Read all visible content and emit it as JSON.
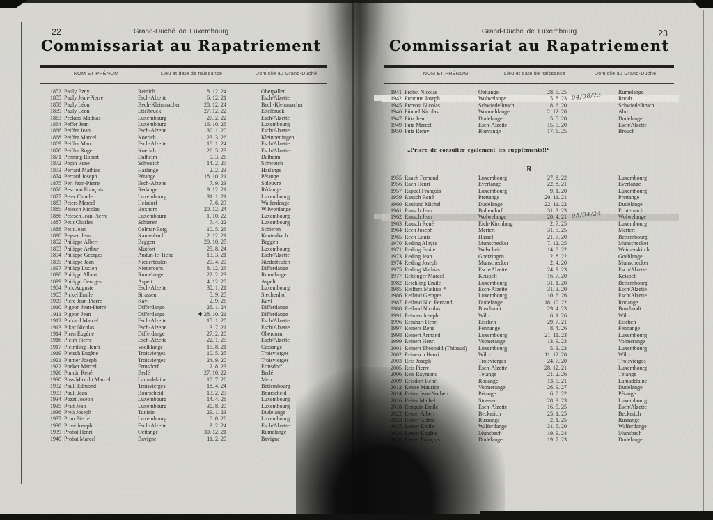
{
  "left_page": {
    "page_number": "22",
    "running_head": "Grand-Duché de Luxembourg",
    "title": "Commissariat au Rapatriement",
    "columns": [
      "NOM ET PRÉNOM",
      "Lieu et date de naissance",
      "Domicile au Grand-Duché"
    ],
    "rows": [
      [
        "1852",
        "Pauly Ezny",
        "Remich",
        "8. 12. 24",
        "Oberpallen"
      ],
      [
        "1855",
        "Pauly Jean-Pierre",
        "Esch-Alzette",
        "6. 12. 21",
        "Esch/Alzette"
      ],
      [
        "1858",
        "Pauly Léon",
        "Bech-Kleinmacher",
        "28. 12. 24",
        "Bech-Kleinmacher"
      ],
      [
        "1859",
        "Pauly Léon",
        "Ettelbruck",
        "27. 12. 22",
        "Ettelbruck"
      ],
      [
        "1863",
        "Peckers Mathias",
        "Luxembourg",
        "27. 2. 22",
        "Esch/Alzette"
      ],
      [
        "1864",
        "Peffer Jean",
        "Luxembourg",
        "16. 10. 26",
        "Luxembourg"
      ],
      [
        "1866",
        "Peiffer Jean",
        "Esch-Alzette",
        "30. 1. 20",
        "Esch/Alzette"
      ],
      [
        "1868",
        "Peiffer Marcel",
        "Koerich",
        "23. 3. 26",
        "Kleinbettingen"
      ],
      [
        "1869",
        "Peiffer Marc",
        "Esch-Alzette",
        "18. 1. 24",
        "Esch/Alzette"
      ],
      [
        "1870",
        "Peiffer Roger",
        "Koerich",
        "26. 5. 23",
        "Esch/Alzette"
      ],
      [
        "1871",
        "Penning Robert",
        "Dalheim",
        "9. 3. 26",
        "Dalheim"
      ],
      [
        "1872",
        "Pepin René",
        "Schweich",
        "14. 2. 25",
        "Schweich"
      ],
      [
        "1873",
        "Perrard Mathias",
        "Harlange",
        "2. 2. 23",
        "Harlange"
      ],
      [
        "1874",
        "Perrard Joseph",
        "Pétange",
        "18. 10. 21",
        "Pétange"
      ],
      [
        "1875",
        "Perl Jean-Pierre",
        "Esch-Alzette",
        "7. 9. 23",
        "Soleuvre"
      ],
      [
        "1876",
        "Peschon François",
        "Rédange",
        "9. 12. 21",
        "Rédange"
      ],
      [
        "1877",
        "Peter Claude",
        "Luxembourg",
        "31. 1. 21",
        "Luxembourg"
      ],
      [
        "1883",
        "Peters Marcel",
        "Heisdorf",
        "7. 6. 23",
        "Walferdange"
      ],
      [
        "1885",
        "Petesch Nicolas",
        "Boxhorn",
        "20. 12. 24",
        "Wilwerdange"
      ],
      [
        "1886",
        "Petesch Jean-Pierre",
        "Luxembourg",
        "1. 10. 22",
        "Luxembourg"
      ],
      [
        "1887",
        "Petit Charles",
        "Schieren",
        "7. 4. 22",
        "Luxembourg"
      ],
      [
        "1888",
        "Petit Jean",
        "Colmar-Berg",
        "10. 5. 26",
        "Schieren"
      ],
      [
        "1890",
        "Peysen Jean",
        "Kautenbach",
        "2. 12. 21",
        "Kautenbach"
      ],
      [
        "1892",
        "Philippe Albert",
        "Beggen",
        "20. 10. 25",
        "Beggen"
      ],
      [
        "1893",
        "Philippe Arthur",
        "Mutfort",
        "25. 8. 24",
        "Luxembourg"
      ],
      [
        "1894",
        "Philippe Georges",
        "Audun-le-Tiche",
        "13. 3. 21",
        "Esch/Alzette"
      ],
      [
        "1895",
        "Philippe Jean",
        "Niederfeulen",
        "29. 4. 20",
        "Niederfeulen"
      ],
      [
        "1897",
        "Philipp Lucien",
        "Niedercorn",
        "8. 12. 26",
        "Differdange"
      ],
      [
        "1898",
        "Philippi Albert",
        "Rumelange",
        "22. 2. 23",
        "Rumelange"
      ],
      [
        "1899",
        "Philippi Georges",
        "Aspelt",
        "4. 12. 20",
        "Aspelt"
      ],
      [
        "1904",
        "Pick Auguste",
        "Esch-Alzette",
        "30. 1. 21",
        "Luxembourg"
      ],
      [
        "1905",
        "Pickel Emile",
        "Strassen",
        "5. 9. 25",
        "Siechenhof"
      ],
      [
        "1909",
        "Pière Jean-Pierre",
        "Kayl",
        "2. 9. 26",
        "Kayl"
      ],
      [
        "1910",
        "Pigeon Jean-Pierre",
        "Differdange",
        "26. 1. 24",
        "Differdange"
      ],
      [
        "1911",
        "Pigeon Jean",
        "Differdange",
        "✱  28. 10. 21",
        "Differdange"
      ],
      [
        "1912",
        "Pickard Marcel",
        "Esch-Alzette",
        "15. 1. 20",
        "Esch/Alzette"
      ],
      [
        "1913",
        "Pikar Nicolas",
        "Esch-Alzette",
        "3. 7. 21",
        "Esch/Alzette"
      ],
      [
        "1914",
        "Piren Eugène",
        "Differdange",
        "27. 2. 20",
        "Obercorn"
      ],
      [
        "1916",
        "Pleim Pierre",
        "Esch-Alzette",
        "22. 1. 25",
        "Esch/Alzette"
      ],
      [
        "1917",
        "Pleimling Henri",
        "Voelklange",
        "15. 8. 21",
        "Cessange"
      ],
      [
        "1919",
        "Pletsch Eugène",
        "Troisvierges",
        "10. 5. 25",
        "Troisvierges"
      ],
      [
        "1921",
        "Plumer Joseph",
        "Troisvierges",
        "24. 9. 20",
        "Troisvierges"
      ],
      [
        "1922",
        "Poeker Marcel",
        "Ermsdorf",
        "2. 8. 23",
        "Ermsdorf"
      ],
      [
        "1926",
        "Poncin René",
        "Berlé",
        "27. 10. 22",
        "Berlé"
      ],
      [
        "1930",
        "Poss Max dit Marcel",
        "Lamadelaine",
        "10. 7. 26",
        "Metz"
      ],
      [
        "1932",
        "Pouli Edmond",
        "Troisvierges",
        "18. 4. 24",
        "Bettembourg"
      ],
      [
        "1933",
        "Pouli Jean",
        "Bourscheid",
        "13. 2. 23",
        "Bourscheid"
      ],
      [
        "1934",
        "Pozzi Joseph",
        "Luxembourg",
        "14. 4. 26",
        "Luxembourg"
      ],
      [
        "1935",
        "Pratt Jean",
        "Luxembourg",
        "30. 8. 20",
        "Luxembourg"
      ],
      [
        "1936",
        "Preti Joseph",
        "Tunisie",
        "29. 1. 23",
        "Dudelange"
      ],
      [
        "1937",
        "Prim Pierre",
        "Luxembourg",
        "8. 8. 26",
        "Luxembourg"
      ],
      [
        "1938",
        "Privé Joseph",
        "Esch-Alzette",
        "9. 2. 24",
        "Esch/Alzette"
      ],
      [
        "1939",
        "Probst Henri",
        "Oettange",
        "30. 12. 21",
        "Rumelange"
      ],
      [
        "1940",
        "Probst Marcel",
        "Bavigne",
        "11. 2. 20",
        "Bavigne"
      ]
    ]
  },
  "right_page": {
    "page_number": "23",
    "running_head": "Grand-Duché de Luxembourg",
    "title": "Commissariat au Rapatriement",
    "columns": [
      "NOM ET PRÉNOM",
      "Lieu et date de naissance",
      "Domicile au Grand-Duché"
    ],
    "rows_top": [
      [
        "1941",
        "Probst Nicolas",
        "Oettange",
        "28. 5. 25",
        "Rumelange"
      ],
      [
        "1942",
        "Promme Joseph",
        "Wolwelange",
        "5. 8. 23",
        "Roodt"
      ],
      [
        "1945",
        "Provost Nicolas",
        "Schwiedelbruch",
        "8. 6. 20",
        "Schwiedelbruch"
      ],
      [
        "1946",
        "Pünnel Nicolas",
        "Wormeldange",
        "2. 12. 20",
        "Ahn"
      ],
      [
        "1947",
        "Pütz Jean",
        "Dudelange",
        "5. 5. 20",
        "Dudelange"
      ],
      [
        "1949",
        "Putz Marcel",
        "Esch-Alzette",
        "15. 5. 20",
        "Esch/Alzette"
      ],
      [
        "1950",
        "Putz Remy",
        "Boevange",
        "17. 6. 25",
        "Brouch"
      ]
    ],
    "notice": "„Prière de consulter également les suppléments!!“",
    "section_letter": "R",
    "rows_bottom": [
      [
        "1955",
        "Raach Fernand",
        "Luxembourg",
        "27. 8. 22",
        "Luxembourg"
      ],
      [
        "1956",
        "Rach Henri",
        "Everlange",
        "22. 8. 21",
        "Everlange"
      ],
      [
        "1957",
        "Rappel François",
        "Luxembourg",
        "9. 1. 20",
        "Luxembourg"
      ],
      [
        "1959",
        "Rausch René",
        "Prettange",
        "20. 11. 21",
        "Prettange"
      ],
      [
        "1960",
        "Raulund Michel",
        "Dudelange",
        "22. 11. 22",
        "Dudelange"
      ],
      [
        "1961",
        "Rausch Jean",
        "Bollendorf",
        "31. 3. 23",
        "Echternach"
      ],
      [
        "1962",
        "Rausch Jean",
        "Wolwelange",
        "20. 4. 21",
        "Wolwelange"
      ],
      [
        "1963",
        "Rausch René",
        "Eich-Kirchberg",
        "2. 7. 25",
        "Luxembourg"
      ],
      [
        "1964",
        "Rech Joseph",
        "Mertert",
        "31. 5. 25",
        "Mertert"
      ],
      [
        "1965",
        "Rech Louis",
        "Hassel",
        "21. 7. 20",
        "Bettembourg"
      ],
      [
        "1970",
        "Reding Aloyse",
        "Munschecker",
        "7. 12. 25",
        "Munschecker"
      ],
      [
        "1971",
        "Reding Emile",
        "Welscheid",
        "14. 8. 22",
        "Weimerskirch"
      ],
      [
        "1973",
        "Reding Jean",
        "Goetzingen",
        "2. 8. 22",
        "Goeblange"
      ],
      [
        "1974",
        "Reding Joseph",
        "Munschecker",
        "2. 4. 20",
        "Munschecker"
      ],
      [
        "1975",
        "Reding Mathias",
        "Esch-Alzette",
        "24. 9. 23",
        "Esch/Alzette"
      ],
      [
        "1977",
        "Rehlinger Marcel",
        "Keispelt",
        "16. 7. 20",
        "Keispelt"
      ],
      [
        "1982",
        "Reichling Emile",
        "Luxembourg",
        "31. 1. 20",
        "Bettembourg"
      ],
      [
        "1985",
        "Reiffers Mathias *",
        "Esch-Alzette",
        "31. 3. 20",
        "Esch/Alzette"
      ],
      [
        "1986",
        "Reiland Georges",
        "Luxembourg",
        "10. 6. 26",
        "Esch/Alzette"
      ],
      [
        "1987",
        "Reiland Nic. Fernand",
        "Dudelange",
        "18. 10. 22",
        "Rodange"
      ],
      [
        "1988",
        "Reiland Nicolas",
        "Buschrodt",
        "29. 4. 23",
        "Buschrodt"
      ],
      [
        "1991",
        "Reimen Joseph",
        "Wiltz",
        "6. 1. 26",
        "Wiltz"
      ],
      [
        "1996",
        "Reinhart Henri",
        "Eischen",
        "29. 7. 21",
        "Eischen"
      ],
      [
        "1997",
        "Reiners René",
        "Fennange",
        "8. 4. 26",
        "Fennange"
      ],
      [
        "1998",
        "Reinert Armand",
        "Luxembourg",
        "21. 11. 23",
        "Luxembourg"
      ],
      [
        "1999",
        "Reinert Henri",
        "Volmerange",
        "13. 9. 23",
        "Volmerange"
      ],
      [
        "2001",
        "Reinert Théobald (Thibaud)",
        "Luxembourg",
        "5. 3. 23",
        "Luxembourg"
      ],
      [
        "2002",
        "Reinesch Henri",
        "Wiltz",
        "11. 12. 20",
        "Wiltz"
      ],
      [
        "2003",
        "Reis Joseph",
        "Troisvierges",
        "24. 7. 20",
        "Troisvierges"
      ],
      [
        "2005",
        "Reis Pierre",
        "Esch-Alzette",
        "28. 12. 21",
        "Luxembourg"
      ],
      [
        "2006",
        "Reis Raymond",
        "Tétange",
        "21. 2. 26",
        "Tétange"
      ],
      [
        "2009",
        "Reisdorf René",
        "Rodange",
        "13. 5. 21",
        "Lamadelaine"
      ],
      [
        "2012",
        "Reisse Maurice",
        "Volmerange",
        "26. 9. 27",
        "Dudelange"
      ],
      [
        "2014",
        "Reiter Jean-Norbert",
        "Pétange",
        "6. 8. 22",
        "Pétange"
      ],
      [
        "2016",
        "Reiter Michel",
        "Strassen",
        "28. 3. 23",
        "Luxembourg"
      ],
      [
        "2018",
        "Renquin Emile",
        "Esch-Alzette",
        "16. 5. 25",
        "Esch/Alzette"
      ],
      [
        "2022",
        "Reuter Albert",
        "Beckerich",
        "25. 1. 25",
        "Beckerich"
      ],
      [
        "2023",
        "Reuter Alfred",
        "Russange",
        "2. 1. 25",
        "Russange"
      ],
      [
        "2025",
        "Reuter Emile",
        "Walferdange",
        "31. 5. 20",
        "Walferdange"
      ],
      [
        "2026",
        "Reuter Eugène",
        "Munsbach",
        "19. 9. 24",
        "Munsbach"
      ],
      [
        "2028",
        "Reuter François",
        "Dudelange",
        "19. 7. 23",
        "Dudelange"
      ]
    ]
  },
  "annotations": {
    "handwritten": {
      "1942": "04/08/23",
      "1962": "05/04/24"
    },
    "highlights": {
      "1942": "light",
      "1962": "gray"
    }
  },
  "colors": {
    "paper": "#d6d5d0",
    "ink": "#2b2a27",
    "highlight_light": "#e6e5e0",
    "highlight_gray": "#c3c2bd"
  }
}
